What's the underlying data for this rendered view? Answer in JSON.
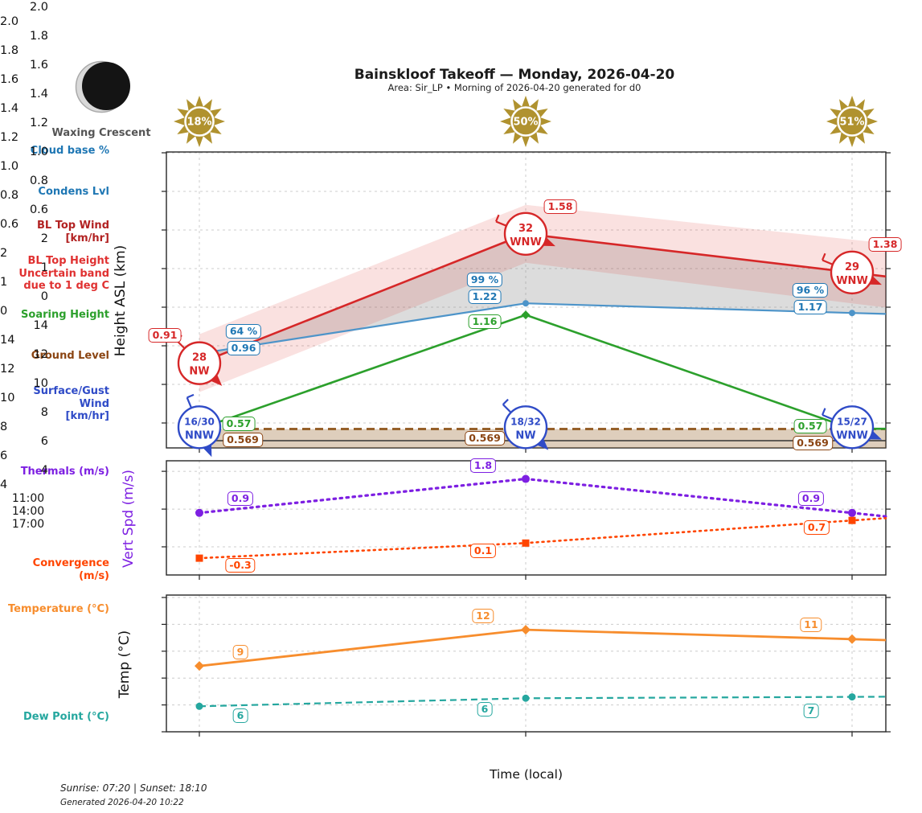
{
  "header": {
    "title": "Bainskloof Takeoff — Monday, 2026-04-20",
    "subtitle": "Area: Sir_LP • Morning of 2026-04-20 generated for d0",
    "moon_phase": "Waxing Crescent"
  },
  "suns": [
    "18%",
    "50%",
    "51%"
  ],
  "sidebar": {
    "cloud_base": "Cloud base %",
    "condens_lvl": "Condens Lvl",
    "bl_top_wind_1": "BL Top Wind",
    "bl_top_wind_2": "[km/hr]",
    "bl_top_height_1": "BL Top Height",
    "bl_top_height_2": "Uncertain band",
    "bl_top_height_3": "due to 1 deg C",
    "soaring_height": "Soaring Height",
    "ground_level": "Ground Level",
    "surface_wind_1": "Surface/Gust Wind",
    "surface_wind_2": "[km/hr]",
    "thermals": "Thermals (m/s)",
    "convergence": "Convergence (m/s)",
    "temperature": "Temperature (°C)",
    "dew_point": "Dew Point (°C)"
  },
  "axes": {
    "xlabel": "Time (local)",
    "xticks": [
      "11:00",
      "14:00",
      "17:00"
    ]
  },
  "footer": {
    "sun_times": "Sunrise: 07:20 | Sunset: 18:10",
    "generated": "Generated 2026-04-20 10:22"
  },
  "colors": {
    "red": "#d62728",
    "dark_red": "#b22222",
    "blue": "#1f77b4",
    "blue_line": "#4d94c9",
    "royal_blue": "#2f4bc7",
    "green": "#2ca02c",
    "brown": "#8B4513",
    "brown_line": "#96602a",
    "ground_fill": "rgba(160,114,62,0.35)",
    "band_pink": "rgba(222,45,38,0.14)",
    "band_gray": "rgba(128,128,128,0.28)",
    "purple": "#7d1fe2",
    "orangered": "#ff4500",
    "orange": "#f78d2d",
    "teal": "#25a79f",
    "sun": "#b0922f",
    "grid": "#cccccc"
  },
  "chart_data": [
    {
      "type": "line",
      "name": "height_panel",
      "ylabel": "Height ASL (km)",
      "x": [
        "11:00",
        "14:00",
        "17:00"
      ],
      "ylim": [
        0.47,
        2.0
      ],
      "yticks": [
        "2.0",
        "1.8",
        "1.6",
        "1.4",
        "1.2",
        "1.0",
        "0.8",
        "0.6"
      ],
      "ytick_values": [
        2.0,
        1.8,
        1.6,
        1.4,
        1.2,
        1.0,
        0.8,
        0.6
      ],
      "grid": true,
      "series": [
        {
          "id": "bl_top_height",
          "legend": "BL Top Height",
          "values": [
            0.91,
            1.58,
            1.38
          ],
          "labels": [
            "0.91",
            "1.58",
            "1.38"
          ]
        },
        {
          "id": "condens_lvl",
          "legend": "Condens Lvl",
          "values": [
            0.96,
            1.22,
            1.17
          ],
          "labels": [
            "0.96",
            "1.22",
            "1.17"
          ]
        },
        {
          "id": "cloud_base_pct",
          "legend": "Cloud base %",
          "labels": [
            "64 %",
            "99 %",
            "96 %"
          ]
        },
        {
          "id": "soaring_height",
          "legend": "Soaring Height",
          "values": [
            0.57,
            1.16,
            0.57
          ],
          "labels": [
            "0.57",
            "1.16",
            "0.57"
          ]
        },
        {
          "id": "ground_level",
          "legend": "Ground Level",
          "values": [
            0.569,
            0.569,
            0.569
          ],
          "labels": [
            "0.569",
            "0.569",
            "0.569"
          ]
        }
      ],
      "uncertainty_band": {
        "legend": "BL Top Height Uncertain band due to 1 deg C",
        "upper": [
          1.06,
          1.73,
          1.55
        ],
        "lower": [
          0.76,
          1.43,
          1.22
        ]
      },
      "bl_top_wind": [
        {
          "speed": "28",
          "dir": "NW"
        },
        {
          "speed": "32",
          "dir": "WNW"
        },
        {
          "speed": "29",
          "dir": "WNW"
        }
      ],
      "surface_gust_wind": [
        {
          "speed": "16/30",
          "dir": "NNW"
        },
        {
          "speed": "18/32",
          "dir": "NW"
        },
        {
          "speed": "15/27",
          "dir": "WNW"
        }
      ]
    },
    {
      "type": "line",
      "name": "vert_speed_panel",
      "ylabel": "Vert Spd (m/s)",
      "x": [
        "11:00",
        "14:00",
        "17:00"
      ],
      "ylim": [
        -0.75,
        2.28
      ],
      "yticks": [
        "2",
        "1",
        "0"
      ],
      "ytick_values": [
        2,
        1,
        0
      ],
      "grid": true,
      "series": [
        {
          "id": "thermals",
          "legend": "Thermals (m/s)",
          "values": [
            0.9,
            1.8,
            0.9
          ],
          "labels": [
            "0.9",
            "1.8",
            "0.9"
          ]
        },
        {
          "id": "convergence",
          "legend": "Convergence (m/s)",
          "values": [
            -0.3,
            0.1,
            0.7
          ],
          "labels": [
            "-0.3",
            "0.1",
            "0.7"
          ]
        }
      ]
    },
    {
      "type": "line",
      "name": "temperature_panel",
      "ylabel": "Temp (°C)",
      "x": [
        "11:00",
        "14:00",
        "17:00"
      ],
      "ylim": [
        4,
        14.2
      ],
      "yticks": [
        "14",
        "12",
        "10",
        "8",
        "6",
        "4"
      ],
      "ytick_values": [
        14,
        12,
        10,
        8,
        6,
        4
      ],
      "grid": true,
      "series": [
        {
          "id": "temperature",
          "legend": "Temperature (°C)",
          "values": [
            8.9,
            11.6,
            10.9
          ],
          "labels": [
            "9",
            "12",
            "11"
          ]
        },
        {
          "id": "dew_point",
          "legend": "Dew Point (°C)",
          "values": [
            5.9,
            6.5,
            6.6
          ],
          "labels": [
            "6",
            "6",
            "7"
          ]
        }
      ]
    }
  ]
}
